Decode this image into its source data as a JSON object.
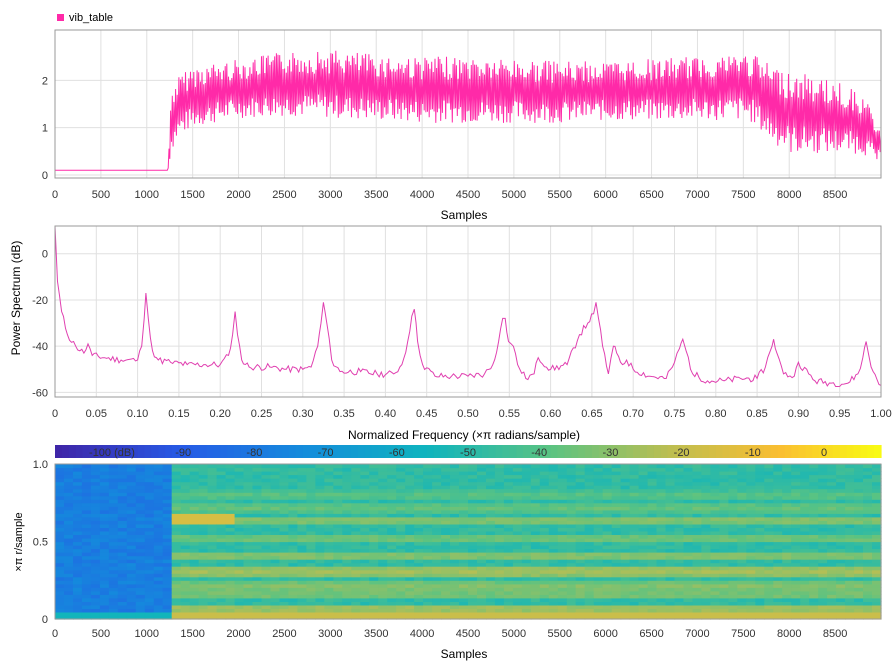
{
  "colors": {
    "series": "#ff2aa8",
    "spectrum": "#e040b0",
    "frame": "#999999",
    "grid": "#e0e0e0",
    "tick_text": "#333333"
  },
  "chart_data": [
    {
      "type": "line",
      "legend": "vib_table",
      "legend_position": "top-left",
      "xlabel": "Samples",
      "ylabel": "",
      "xlim": [
        0,
        9000
      ],
      "ylim": [
        0,
        3
      ],
      "xticks": [
        "0",
        "500",
        "1000",
        "1500",
        "2000",
        "2500",
        "3000",
        "3500",
        "4000",
        "4500",
        "5000",
        "5500",
        "6000",
        "6500",
        "7000",
        "7500",
        "8000",
        "8500"
      ],
      "yticks": [
        "0",
        "1",
        "2"
      ],
      "grid": true,
      "series": [
        {
          "name": "vib_table",
          "description": "oscillating envelope (min/max per sample region)",
          "x": [
            0,
            1230,
            1270,
            1350,
            1500,
            2000,
            2500,
            3000,
            3500,
            4000,
            4500,
            5000,
            5500,
            6000,
            6500,
            7000,
            7500,
            7600,
            7800,
            8000,
            8500,
            8800,
            9000
          ],
          "upper": [
            0.1,
            0.1,
            1.9,
            2.1,
            2.3,
            2.45,
            2.6,
            2.65,
            2.55,
            2.5,
            2.5,
            2.45,
            2.4,
            2.4,
            2.45,
            2.5,
            2.6,
            2.55,
            2.35,
            2.2,
            2.0,
            1.7,
            1.0
          ],
          "lower": [
            0.1,
            0.1,
            0.5,
            0.8,
            1.0,
            1.2,
            1.25,
            1.2,
            1.15,
            1.1,
            1.1,
            1.1,
            1.1,
            1.15,
            1.15,
            1.15,
            1.15,
            1.1,
            0.7,
            0.45,
            0.45,
            0.45,
            0.2
          ]
        }
      ]
    },
    {
      "type": "line",
      "xlabel": "Normalized Frequency (×π radians/sample)",
      "ylabel": "Power Spectrum (dB)",
      "xlim": [
        0,
        1
      ],
      "ylim": [
        -62,
        12
      ],
      "xticks": [
        "0",
        "0.05",
        "0.10",
        "0.15",
        "0.20",
        "0.25",
        "0.30",
        "0.35",
        "0.40",
        "0.45",
        "0.50",
        "0.55",
        "0.60",
        "0.65",
        "0.70",
        "0.75",
        "0.80",
        "0.85",
        "0.90",
        "0.95",
        "1.00"
      ],
      "yticks": [
        "0",
        "-20",
        "-40",
        "-60"
      ],
      "grid": true,
      "series": [
        {
          "name": "",
          "x": [
            0.0,
            0.003,
            0.008,
            0.015,
            0.025,
            0.035,
            0.04,
            0.045,
            0.06,
            0.08,
            0.1,
            0.105,
            0.108,
            0.11,
            0.113,
            0.118,
            0.125,
            0.14,
            0.16,
            0.18,
            0.2,
            0.21,
            0.215,
            0.218,
            0.221,
            0.226,
            0.235,
            0.26,
            0.28,
            0.3,
            0.31,
            0.318,
            0.322,
            0.325,
            0.329,
            0.335,
            0.345,
            0.37,
            0.39,
            0.41,
            0.42,
            0.427,
            0.432,
            0.435,
            0.439,
            0.445,
            0.46,
            0.48,
            0.5,
            0.52,
            0.53,
            0.537,
            0.542,
            0.545,
            0.549,
            0.555,
            0.56,
            0.57,
            0.58,
            0.585,
            0.6,
            0.62,
            0.635,
            0.645,
            0.652,
            0.655,
            0.658,
            0.663,
            0.67,
            0.676,
            0.68,
            0.687,
            0.692,
            0.7,
            0.72,
            0.74,
            0.75,
            0.756,
            0.76,
            0.764,
            0.772,
            0.79,
            0.81,
            0.83,
            0.85,
            0.86,
            0.866,
            0.87,
            0.874,
            0.882,
            0.895,
            0.9,
            0.92,
            0.94,
            0.96,
            0.972,
            0.978,
            0.982,
            0.988,
            1.0
          ],
          "y": [
            12,
            -12,
            -25,
            -35,
            -40,
            -43,
            -39,
            -44,
            -45,
            -46,
            -46,
            -40,
            -28,
            -17,
            -28,
            -42,
            -46,
            -47,
            -48,
            -48,
            -48,
            -44,
            -35,
            -25,
            -35,
            -46,
            -49,
            -49,
            -50,
            -50,
            -49,
            -40,
            -30,
            -21,
            -30,
            -46,
            -51,
            -51,
            -52,
            -52,
            -48,
            -38,
            -27,
            -24,
            -38,
            -48,
            -53,
            -53,
            -53,
            -52,
            -48,
            -38,
            -28,
            -28,
            -38,
            -40,
            -48,
            -54,
            -52,
            -45,
            -50,
            -48,
            -35,
            -30,
            -26,
            -21,
            -28,
            -40,
            -52,
            -40,
            -43,
            -48,
            -46,
            -50,
            -53,
            -54,
            -47,
            -41,
            -37,
            -42,
            -52,
            -55,
            -55,
            -54,
            -54,
            -49,
            -42,
            -37,
            -43,
            -52,
            -53,
            -47,
            -55,
            -56,
            -56,
            -52,
            -45,
            -38,
            -49,
            -57
          ]
        }
      ]
    },
    {
      "type": "heatmap",
      "xlabel": "Samples",
      "ylabel": "×π r/sample",
      "xlim": [
        0,
        9000
      ],
      "ylim": [
        0,
        1
      ],
      "xticks": [
        "0",
        "500",
        "1000",
        "1500",
        "2000",
        "2500",
        "3000",
        "3500",
        "4000",
        "4500",
        "5000",
        "5500",
        "6000",
        "6500",
        "7000",
        "7500",
        "8000",
        "8500"
      ],
      "yticks": [
        "0",
        "0.5",
        "1.0"
      ],
      "colorbar": {
        "position": "top",
        "ticks": [
          "-100 (dB)",
          "-90",
          "-80",
          "-70",
          "-60",
          "-50",
          "-40",
          "-30",
          "-20",
          "-10",
          "0"
        ],
        "range": [
          -108,
          8
        ]
      },
      "regions": [
        {
          "x_range": [
            0,
            1250
          ],
          "level_db": -80,
          "description": "low power before excitation"
        },
        {
          "x_range": [
            1250,
            9000
          ],
          "level_db": -45,
          "description": "broadband response with harmonic bands"
        }
      ],
      "bands": [
        {
          "f": 0.07,
          "level_db": -25
        },
        {
          "f": 0.16,
          "level_db": -32
        },
        {
          "f": 0.21,
          "level_db": -30
        },
        {
          "f": 0.31,
          "level_db": -25
        },
        {
          "f": 0.41,
          "level_db": -30
        },
        {
          "f": 0.52,
          "level_db": -34
        },
        {
          "f": 0.64,
          "level_db": -30
        },
        {
          "f": 0.72,
          "level_db": -36
        },
        {
          "f": 0.8,
          "level_db": -38
        }
      ]
    }
  ]
}
